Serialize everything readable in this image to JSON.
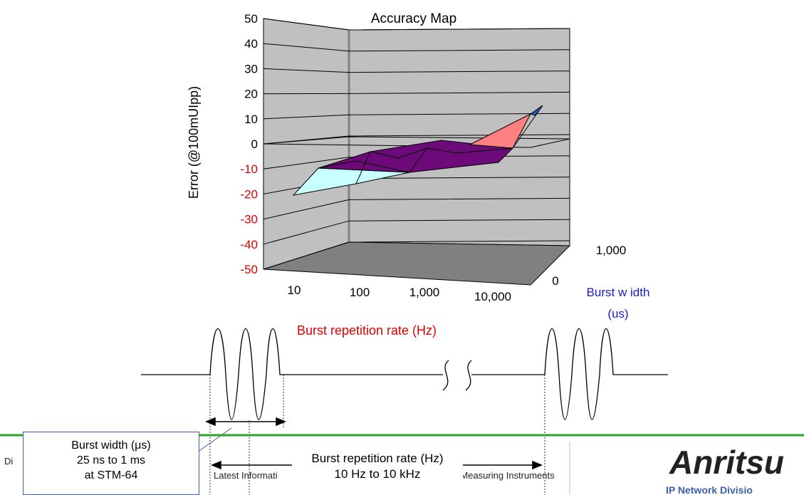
{
  "chart_data": {
    "type": "surface3d",
    "title": "Accuracy Map",
    "ylabel": "Error (@100mUIpp)",
    "xlabel": "Burst repetition rate (Hz)",
    "zlabel_line1": "Burst w idth",
    "zlabel_line2": "(us)",
    "ylim": [
      -50,
      50
    ],
    "y_ticks": [
      "50",
      "40",
      "30",
      "20",
      "10",
      "0",
      "-10",
      "-20",
      "-30",
      "-40",
      "-50"
    ],
    "x_ticks": [
      "10",
      "100",
      "1,000",
      "10,000"
    ],
    "z_ticks": [
      "0",
      "1,000"
    ],
    "colors": {
      "negative_tick": "#e00000",
      "zlabel": "#1a1acc",
      "xlabel": "#e00000"
    },
    "surface_bands": [
      {
        "range": "-20 to -10",
        "color": "#c8ffff"
      },
      {
        "range": "-10 to 0",
        "color": "#6b0a78"
      },
      {
        "range": "0 to 10",
        "color": "#ff8080"
      },
      {
        "range": "10 to 20",
        "color": "#1f5bbf"
      }
    ]
  },
  "diagram": {
    "break_symbol": "≈"
  },
  "callouts": {
    "burst_width": {
      "line1": "Burst width  (μs)",
      "line2": "25 ns to 1 ms",
      "line3": "at  STM-64"
    },
    "repetition": {
      "line1": "Burst repetition rate (Hz)",
      "line2": "10 Hz to 10 kHz"
    }
  },
  "footer": {
    "left_fragment": "Di",
    "middle_fragment": "Latest Informati",
    "right_fragment": "tter Measuring Instruments",
    "logo": "Anritsu",
    "division": "IP Network Divisio"
  }
}
